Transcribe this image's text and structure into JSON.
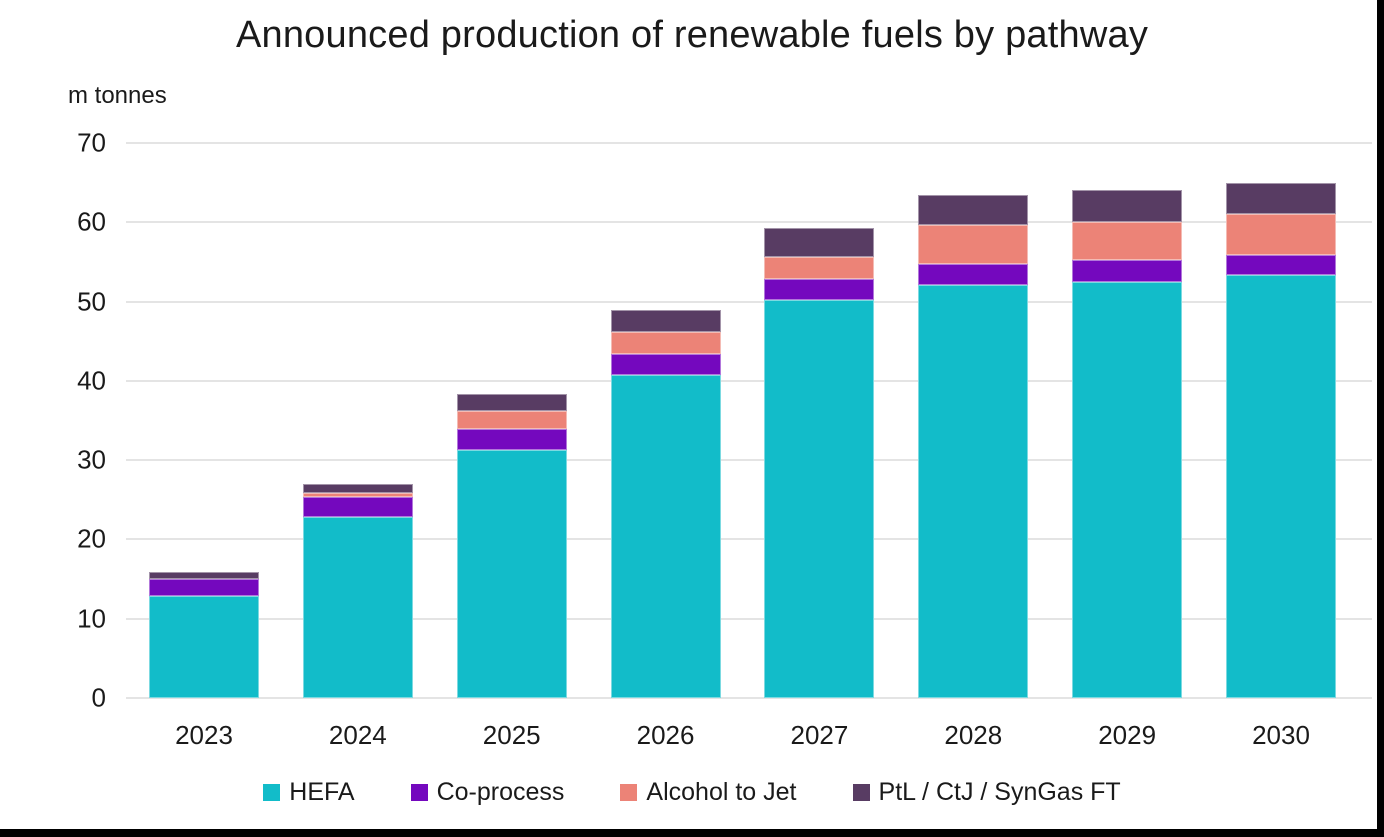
{
  "colors": {
    "text": "#1a1a1a",
    "gridline": "#e4e4e4",
    "frame_edge": "#000000"
  },
  "chart_data": {
    "type": "bar",
    "stacked": true,
    "title": "Announced production of renewable fuels by pathway",
    "unit_label": "m tonnes",
    "xlabel": "",
    "ylabel": "m tonnes",
    "categories": [
      "2023",
      "2024",
      "2025",
      "2026",
      "2027",
      "2028",
      "2029",
      "2030"
    ],
    "series": [
      {
        "name": "HEFA",
        "color": "#12bcc9",
        "values": [
          12.9,
          22.8,
          31.3,
          40.8,
          50.2,
          52.1,
          52.5,
          53.3
        ]
      },
      {
        "name": "Co-process",
        "color": "#7408be",
        "values": [
          2.1,
          2.5,
          2.6,
          2.6,
          2.6,
          2.6,
          2.8,
          2.6
        ]
      },
      {
        "name": "Alcohol to Jet",
        "color": "#ec8377",
        "values": [
          0,
          0.5,
          2.3,
          2.8,
          2.8,
          4.9,
          4.7,
          5.2
        ]
      },
      {
        "name": "PtL / CtJ / SynGas FT",
        "color": "#583c63",
        "values": [
          0.9,
          1.2,
          2.1,
          2.7,
          3.7,
          3.8,
          4.1,
          3.9
        ]
      }
    ],
    "totals": [
      15.9,
      27.0,
      38.3,
      48.9,
      59.3,
      63.4,
      64.1,
      65.0
    ],
    "y_ticks": [
      0,
      10,
      20,
      30,
      40,
      50,
      60,
      70
    ],
    "ylim": [
      0,
      70
    ],
    "grid": "horizontal",
    "legend_position": "bottom"
  }
}
